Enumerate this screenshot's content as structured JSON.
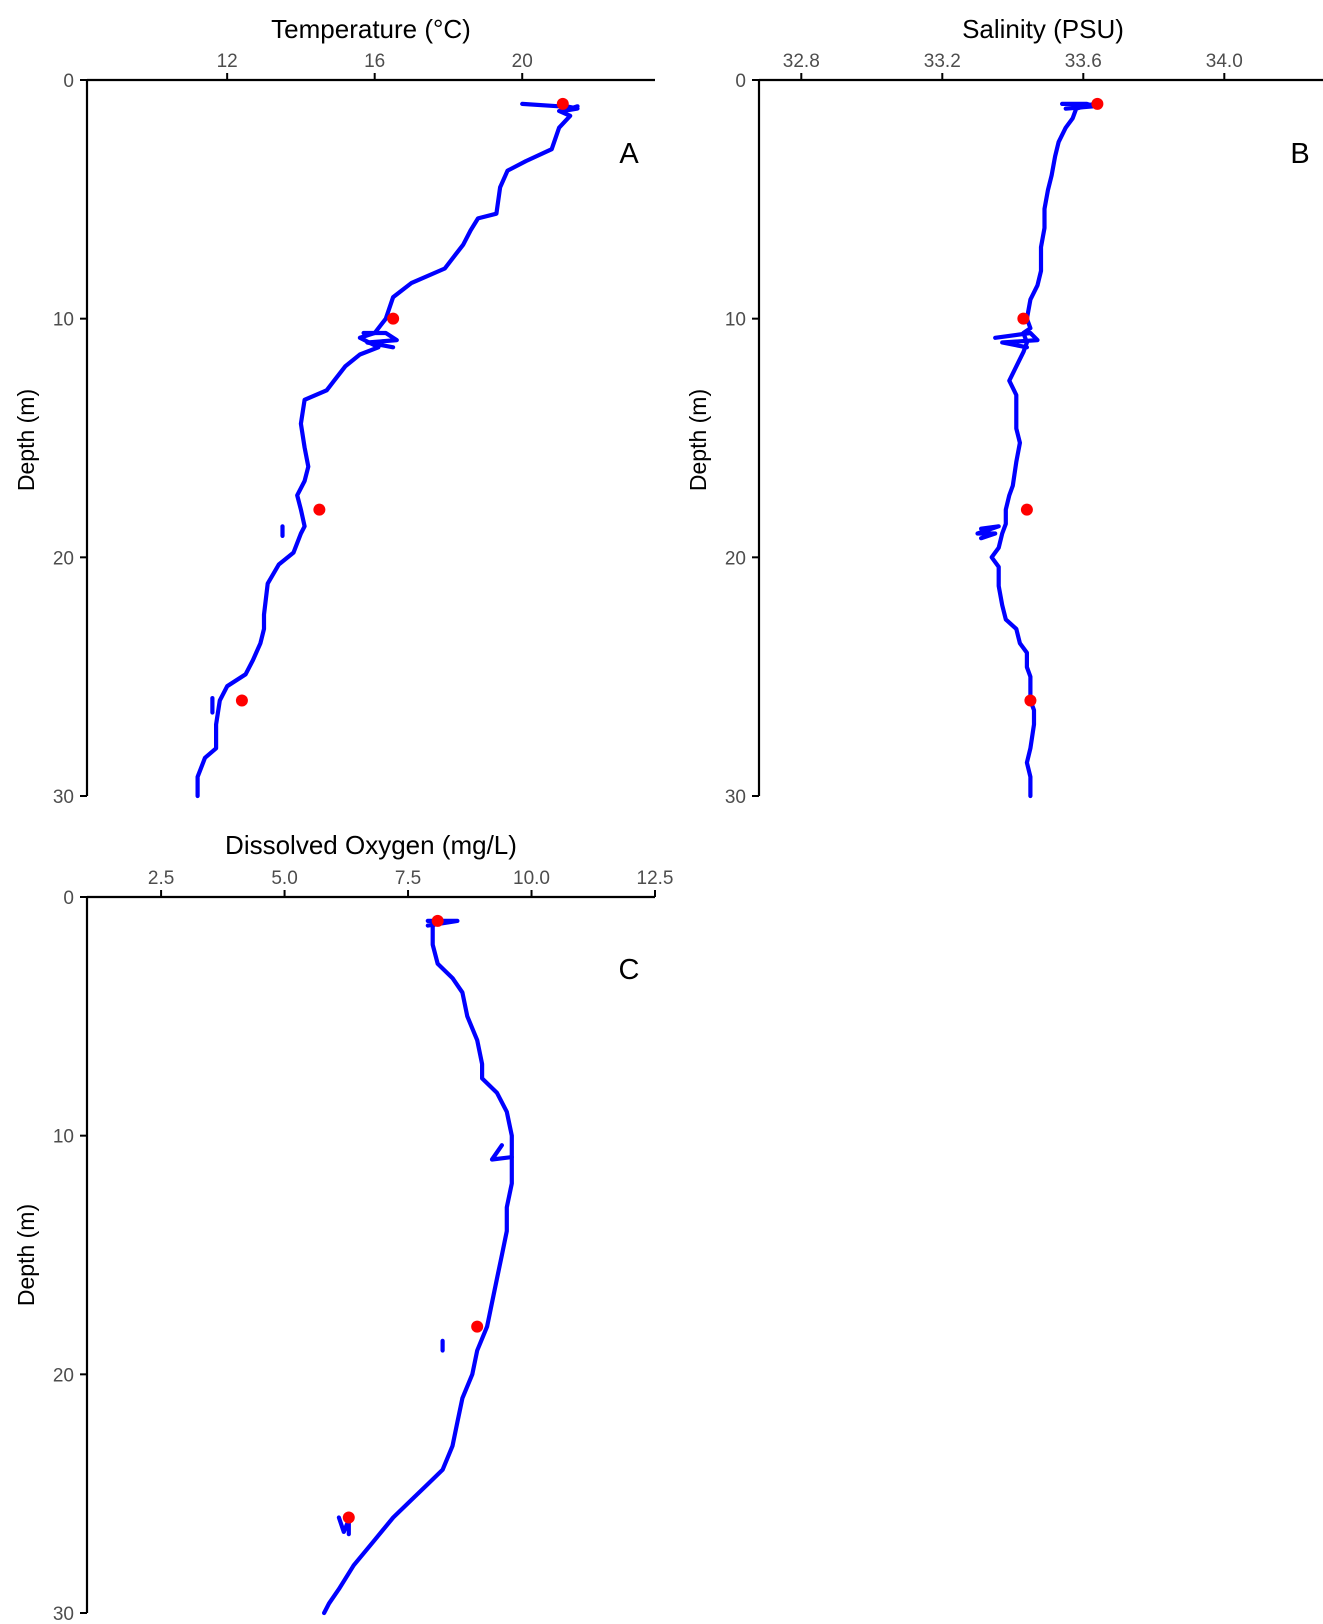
{
  "colors": {
    "profile": "#0000ff",
    "sample": "#ff0000"
  },
  "chart_data": [
    {
      "type": "line",
      "panel_label": "A",
      "title": "Temperature (°C)",
      "ylabel": "Depth (m)",
      "xticks": [
        "12",
        "16",
        "20"
      ],
      "xtick_values": [
        12,
        16,
        20
      ],
      "xlim": [
        8.2,
        23.6
      ],
      "yticks": [
        "0",
        "10",
        "20",
        "30"
      ],
      "ytick_values": [
        0,
        10,
        20,
        30
      ],
      "ylim": [
        0,
        30
      ],
      "y_reversed": true,
      "series": [
        {
          "role": "profile",
          "points": [
            [
              21.5,
              1.1
            ],
            [
              21.3,
              1.2
            ],
            [
              21.0,
              1.3
            ],
            [
              21.3,
              1.5
            ],
            [
              21.0,
              2.0
            ],
            [
              20.8,
              2.9
            ],
            [
              20.1,
              3.4
            ],
            [
              19.6,
              3.8
            ],
            [
              19.4,
              4.5
            ],
            [
              19.3,
              5.6
            ],
            [
              18.8,
              5.8
            ],
            [
              18.6,
              6.3
            ],
            [
              18.4,
              6.9
            ],
            [
              18.2,
              7.3
            ],
            [
              17.9,
              7.9
            ],
            [
              17.0,
              8.5
            ],
            [
              16.5,
              9.1
            ],
            [
              16.3,
              10.0
            ],
            [
              16.0,
              10.6
            ],
            [
              15.6,
              10.8
            ],
            [
              16.1,
              11.2
            ],
            [
              15.6,
              11.5
            ],
            [
              15.2,
              12.0
            ],
            [
              14.9,
              12.6
            ],
            [
              14.7,
              13.0
            ],
            [
              14.1,
              13.4
            ],
            [
              14.0,
              14.4
            ],
            [
              14.1,
              15.4
            ],
            [
              14.2,
              16.2
            ],
            [
              14.1,
              16.8
            ],
            [
              13.9,
              17.4
            ],
            [
              14.0,
              18.0
            ],
            [
              14.1,
              18.7
            ],
            [
              14.0,
              19.0
            ],
            [
              13.8,
              19.8
            ],
            [
              13.4,
              20.3
            ],
            [
              13.1,
              21.1
            ],
            [
              13.0,
              22.4
            ],
            [
              13.0,
              23.0
            ],
            [
              12.9,
              23.6
            ],
            [
              12.7,
              24.3
            ],
            [
              12.5,
              24.9
            ],
            [
              12.0,
              25.4
            ],
            [
              11.8,
              26.0
            ],
            [
              11.7,
              27.0
            ],
            [
              11.7,
              28.0
            ],
            [
              11.4,
              28.4
            ],
            [
              11.2,
              29.2
            ],
            [
              11.2,
              30.0
            ]
          ]
        },
        {
          "role": "cast-artifact",
          "points": [
            [
              20.0,
              1.0
            ],
            [
              21.0,
              1.1
            ],
            [
              21.2,
              1.1
            ],
            [
              21.5,
              1.2
            ],
            [
              21.1,
              1.3
            ]
          ]
        },
        {
          "role": "cast-artifact",
          "points": [
            [
              15.7,
              10.6
            ],
            [
              16.3,
              10.6
            ],
            [
              16.6,
              10.9
            ],
            [
              15.8,
              11.0
            ],
            [
              16.5,
              11.2
            ]
          ]
        },
        {
          "role": "cast-artifact",
          "points": [
            [
              13.5,
              18.7
            ],
            [
              13.5,
              19.1
            ]
          ]
        },
        {
          "role": "cast-artifact",
          "points": [
            [
              11.6,
              25.9
            ],
            [
              11.6,
              26.5
            ]
          ]
        },
        {
          "role": "sample",
          "points": [
            [
              21.1,
              1.0
            ],
            [
              16.5,
              10.0
            ],
            [
              14.5,
              18.0
            ],
            [
              12.4,
              26.0
            ]
          ]
        }
      ]
    },
    {
      "type": "line",
      "panel_label": "B",
      "title": "Salinity (PSU)",
      "ylabel": "Depth (m)",
      "xticks": [
        "32.8",
        "33.2",
        "33.6",
        "34.0"
      ],
      "xtick_values": [
        32.8,
        33.2,
        33.6,
        34.0
      ],
      "xlim": [
        32.68,
        34.28
      ],
      "yticks": [
        "0",
        "10",
        "20",
        "30"
      ],
      "ytick_values": [
        0,
        10,
        20,
        30
      ],
      "ylim": [
        0,
        30
      ],
      "y_reversed": true,
      "series": [
        {
          "role": "profile",
          "points": [
            [
              33.63,
              1.0
            ],
            [
              33.58,
              1.2
            ],
            [
              33.57,
              1.6
            ],
            [
              33.55,
              2.0
            ],
            [
              33.53,
              2.6
            ],
            [
              33.52,
              3.2
            ],
            [
              33.51,
              4.0
            ],
            [
              33.5,
              4.6
            ],
            [
              33.49,
              5.4
            ],
            [
              33.49,
              6.2
            ],
            [
              33.48,
              7.0
            ],
            [
              33.48,
              8.0
            ],
            [
              33.47,
              8.6
            ],
            [
              33.45,
              9.2
            ],
            [
              33.44,
              10.0
            ],
            [
              33.45,
              10.4
            ],
            [
              33.43,
              10.6
            ],
            [
              33.44,
              11.0
            ],
            [
              33.43,
              11.4
            ],
            [
              33.41,
              12.0
            ],
            [
              33.39,
              12.6
            ],
            [
              33.41,
              13.2
            ],
            [
              33.41,
              14.0
            ],
            [
              33.41,
              14.6
            ],
            [
              33.42,
              15.2
            ],
            [
              33.41,
              16.0
            ],
            [
              33.4,
              17.0
            ],
            [
              33.39,
              17.4
            ],
            [
              33.38,
              18.0
            ],
            [
              33.38,
              18.6
            ],
            [
              33.37,
              19.0
            ],
            [
              33.36,
              19.6
            ],
            [
              33.34,
              20.0
            ],
            [
              33.36,
              20.4
            ],
            [
              33.36,
              21.2
            ],
            [
              33.37,
              22.0
            ],
            [
              33.38,
              22.6
            ],
            [
              33.41,
              23.0
            ],
            [
              33.42,
              23.6
            ],
            [
              33.44,
              24.0
            ],
            [
              33.44,
              24.6
            ],
            [
              33.45,
              25.0
            ],
            [
              33.45,
              26.0
            ],
            [
              33.46,
              26.4
            ],
            [
              33.46,
              27.0
            ],
            [
              33.45,
              28.0
            ],
            [
              33.44,
              28.6
            ],
            [
              33.45,
              29.2
            ],
            [
              33.45,
              30.0
            ]
          ]
        },
        {
          "role": "cast-artifact",
          "points": [
            [
              33.54,
              1.0
            ],
            [
              33.61,
              1.0
            ],
            [
              33.63,
              1.1
            ],
            [
              33.55,
              1.2
            ]
          ]
        },
        {
          "role": "cast-artifact",
          "points": [
            [
              33.35,
              10.8
            ],
            [
              33.45,
              10.6
            ],
            [
              33.47,
              10.9
            ],
            [
              33.37,
              11.0
            ],
            [
              33.44,
              11.2
            ]
          ]
        },
        {
          "role": "cast-artifact",
          "points": [
            [
              33.31,
              18.8
            ],
            [
              33.36,
              18.7
            ],
            [
              33.3,
              19.0
            ],
            [
              33.35,
              19.0
            ],
            [
              33.31,
              19.2
            ]
          ]
        },
        {
          "role": "sample",
          "points": [
            [
              33.64,
              1.0
            ],
            [
              33.43,
              10.0
            ],
            [
              33.44,
              18.0
            ],
            [
              33.45,
              26.0
            ]
          ]
        }
      ]
    },
    {
      "type": "line",
      "panel_label": "C",
      "title": "Dissolved Oxygen (mg/L)",
      "ylabel": "Depth (m)",
      "xticks": [
        "2.5",
        "5.0",
        "7.5",
        "10.0",
        "12.5"
      ],
      "xtick_values": [
        2.5,
        5.0,
        7.5,
        10.0,
        12.5
      ],
      "xlim": [
        1.0,
        12.5
      ],
      "yticks": [
        "0",
        "10",
        "20",
        "30"
      ],
      "ytick_values": [
        0,
        10,
        20,
        30
      ],
      "ylim": [
        0,
        30
      ],
      "y_reversed": true,
      "series": [
        {
          "role": "profile",
          "points": [
            [
              8.2,
              1.0
            ],
            [
              8.0,
              1.2
            ],
            [
              8.0,
              2.0
            ],
            [
              8.1,
              2.8
            ],
            [
              8.4,
              3.4
            ],
            [
              8.6,
              4.0
            ],
            [
              8.7,
              5.0
            ],
            [
              8.9,
              6.0
            ],
            [
              9.0,
              7.0
            ],
            [
              9.0,
              7.6
            ],
            [
              9.3,
              8.2
            ],
            [
              9.5,
              9.0
            ],
            [
              9.6,
              10.0
            ],
            [
              9.6,
              11.0
            ],
            [
              9.6,
              12.0
            ],
            [
              9.5,
              13.0
            ],
            [
              9.5,
              14.0
            ],
            [
              9.4,
              15.0
            ],
            [
              9.3,
              16.0
            ],
            [
              9.2,
              17.0
            ],
            [
              9.1,
              18.0
            ],
            [
              8.9,
              19.0
            ],
            [
              8.8,
              20.0
            ],
            [
              8.6,
              21.0
            ],
            [
              8.5,
              22.0
            ],
            [
              8.4,
              23.0
            ],
            [
              8.2,
              24.0
            ],
            [
              7.9,
              24.6
            ],
            [
              7.6,
              25.2
            ],
            [
              7.2,
              26.0
            ],
            [
              6.8,
              27.0
            ],
            [
              6.4,
              28.0
            ],
            [
              6.1,
              29.0
            ],
            [
              5.9,
              29.6
            ],
            [
              5.8,
              30.0
            ]
          ]
        },
        {
          "role": "cast-artifact",
          "points": [
            [
              7.9,
              1.0
            ],
            [
              8.2,
              1.0
            ],
            [
              8.5,
              1.0
            ],
            [
              7.9,
              1.2
            ]
          ]
        },
        {
          "role": "cast-artifact",
          "points": [
            [
              9.4,
              10.4
            ],
            [
              9.2,
              11.0
            ],
            [
              9.6,
              10.9
            ]
          ]
        },
        {
          "role": "cast-artifact",
          "points": [
            [
              8.2,
              18.6
            ],
            [
              8.2,
              19.0
            ]
          ]
        },
        {
          "role": "cast-artifact",
          "points": [
            [
              6.1,
              26.0
            ],
            [
              6.2,
              26.6
            ],
            [
              6.3,
              26.1
            ],
            [
              6.3,
              26.7
            ]
          ]
        },
        {
          "role": "sample",
          "points": [
            [
              8.1,
              1.0
            ],
            [
              8.9,
              18.0
            ],
            [
              6.3,
              26.0
            ]
          ]
        }
      ]
    }
  ]
}
